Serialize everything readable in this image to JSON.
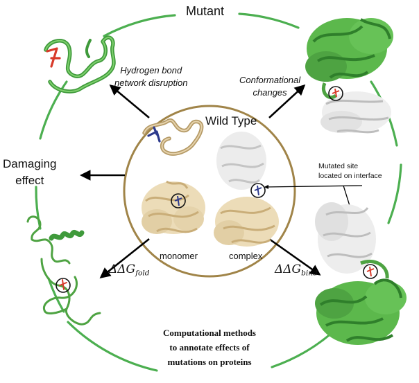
{
  "title": "Mutant",
  "center": {
    "title": "Wild Type",
    "monomer_label": "monomer",
    "complex_label": "complex",
    "interface_note_line1": "Mutated site",
    "interface_note_line2": "located on interface"
  },
  "effects": {
    "hbond_line1": "Hydrogen bond",
    "hbond_line2": "network disruption",
    "conformational_line1": "Conformational",
    "conformational_line2": "changes",
    "damaging_line1": "Damaging",
    "damaging_line2": "effect",
    "ddg_symbol": "ΔΔG",
    "ddg_fold_sub": "fold",
    "ddg_bind_sub": "bind"
  },
  "caption": {
    "line1": "Computational methods",
    "line2": "to annotate effects of",
    "line3": "mutations on proteins"
  },
  "colors": {
    "ring": "#4caf50",
    "circle": "#a08448",
    "mutant_protein": "#59b54a",
    "wildtype_protein": "#d8c39a",
    "partner_protein": "#e3e3e3",
    "mutation_red": "#d83a2a",
    "wildtype_blue": "#2d3a8c",
    "arrow": "#000000"
  }
}
